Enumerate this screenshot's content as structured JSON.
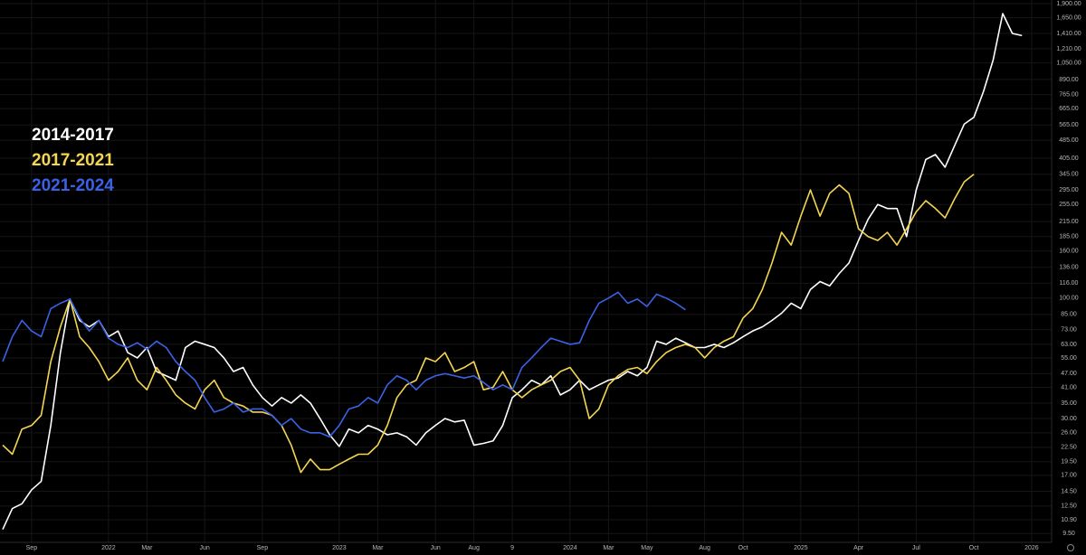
{
  "chart_data": {
    "type": "line",
    "log_scale": true,
    "grid": true,
    "legend": "upper-left",
    "categories": [
      null,
      null,
      null,
      "Sep",
      null,
      null,
      null,
      null,
      null,
      null,
      null,
      "2022",
      null,
      null,
      null,
      "Mar",
      null,
      null,
      null,
      null,
      null,
      "Jun",
      null,
      null,
      null,
      null,
      null,
      "Sep",
      null,
      null,
      null,
      null,
      null,
      null,
      null,
      "2023",
      null,
      null,
      null,
      "Mar",
      null,
      null,
      null,
      null,
      null,
      "Jun",
      null,
      null,
      null,
      "Aug",
      null,
      null,
      null,
      "9",
      null,
      null,
      null,
      null,
      null,
      "2024",
      null,
      null,
      null,
      "Mar",
      null,
      null,
      null,
      "May",
      null,
      null,
      null,
      null,
      null,
      "Aug",
      null,
      null,
      null,
      "Oct",
      null,
      null,
      null,
      null,
      null,
      "2025",
      null,
      null,
      null,
      null,
      null,
      "Apr",
      null,
      null,
      null,
      null,
      null,
      "Jul",
      null,
      null,
      null,
      null,
      null,
      "Oct",
      null,
      null,
      null,
      null,
      null,
      "2026"
    ],
    "series": [
      {
        "name": "2014-2017",
        "color": "#ffffff",
        "values": [
          9.9,
          12.2,
          12.8,
          14.7,
          16,
          28,
          58,
          99,
          80,
          75,
          80,
          68,
          72,
          58,
          55,
          61,
          48,
          46,
          44,
          61,
          65,
          63,
          61,
          55,
          48,
          50,
          42,
          37,
          34,
          37,
          35,
          38,
          35,
          30,
          25.5,
          22.7,
          27,
          26,
          28,
          27,
          25.5,
          26,
          25,
          23,
          26,
          28,
          30,
          29,
          29.5,
          23,
          23.4,
          24,
          28,
          37,
          40,
          44,
          42,
          46,
          38,
          40,
          44,
          40,
          42,
          44,
          45,
          48,
          46,
          50,
          65,
          63,
          67,
          64,
          61,
          61,
          63,
          61,
          64,
          68,
          72,
          75,
          80,
          86,
          95,
          90,
          109,
          118,
          113,
          128,
          142,
          178,
          220,
          255,
          245,
          245,
          185,
          295,
          400,
          420,
          370,
          460,
          570,
          610,
          790,
          1080,
          1720,
          1410,
          1380,
          null
        ]
      },
      {
        "name": "2017-2021",
        "color": "#f5d651",
        "values": [
          23,
          21,
          27,
          28,
          31,
          53,
          75,
          99,
          68,
          61,
          53,
          44,
          48,
          55,
          44,
          40,
          50,
          44,
          38,
          35,
          33,
          40,
          44,
          37,
          35,
          34,
          32,
          32,
          31,
          28,
          23,
          17.5,
          20,
          18,
          18,
          19,
          20,
          21,
          21,
          23,
          28,
          37,
          42,
          44,
          55,
          53,
          58,
          48,
          50,
          53,
          40,
          41,
          48,
          40,
          37,
          40,
          42,
          44,
          48,
          50,
          44,
          30,
          33,
          42,
          46,
          49,
          50,
          47,
          53,
          58,
          61,
          63,
          61,
          55,
          61,
          65,
          68,
          82,
          90,
          109,
          142,
          193,
          170,
          227,
          295,
          227,
          285,
          310,
          285,
          200,
          185,
          178,
          193,
          170,
          200,
          237,
          265,
          245,
          223,
          270,
          320,
          345,
          null,
          null,
          null,
          null,
          null,
          null
        ]
      },
      {
        "name": "2021-2024",
        "color": "#3b62e6",
        "values": [
          53,
          68,
          80,
          72,
          68,
          90,
          95,
          99,
          82,
          72,
          80,
          67,
          63,
          61,
          64,
          60,
          65,
          61,
          53,
          48,
          44,
          37,
          32,
          33,
          35,
          32,
          33,
          33,
          31,
          28,
          30,
          27,
          26,
          26,
          25,
          28,
          33,
          34,
          37,
          35,
          42,
          46,
          44,
          40,
          44,
          46,
          47,
          46,
          45,
          46,
          43,
          40,
          42,
          40,
          50,
          55,
          61,
          67,
          65,
          63,
          64,
          80,
          95,
          100,
          106,
          95,
          99,
          92,
          104,
          100,
          95,
          89,
          null,
          null,
          null,
          null,
          null,
          null,
          null,
          null,
          null,
          null,
          null,
          null,
          null,
          null,
          null,
          null,
          null,
          null,
          null,
          null,
          null,
          null,
          null,
          null,
          null,
          null,
          null,
          null,
          null,
          null,
          null,
          null,
          null,
          null,
          null,
          null
        ]
      }
    ],
    "ylim": [
      8.7,
      1970
    ],
    "yticks": [
      {
        "value": 1900,
        "label": "1,900.00"
      },
      {
        "value": 1650,
        "label": "1,650.00"
      },
      {
        "value": 1410,
        "label": "1,410.00"
      },
      {
        "value": 1210,
        "label": "1,210.00"
      },
      {
        "value": 1050,
        "label": "1,050.00"
      },
      {
        "value": 890,
        "label": "890.00"
      },
      {
        "value": 765,
        "label": "765.00"
      },
      {
        "value": 665,
        "label": "665.00"
      },
      {
        "value": 565,
        "label": "565.00"
      },
      {
        "value": 485,
        "label": "485.00"
      },
      {
        "value": 405,
        "label": "405.00"
      },
      {
        "value": 345,
        "label": "345.00"
      },
      {
        "value": 295,
        "label": "295.00"
      },
      {
        "value": 255,
        "label": "255.00"
      },
      {
        "value": 215,
        "label": "215.00"
      },
      {
        "value": 185,
        "label": "185.00"
      },
      {
        "value": 160,
        "label": "160.00"
      },
      {
        "value": 136,
        "label": "136.00"
      },
      {
        "value": 116,
        "label": "116.00"
      },
      {
        "value": 100,
        "label": "100.00"
      },
      {
        "value": 85,
        "label": "85.00"
      },
      {
        "value": 73,
        "label": "73.00"
      },
      {
        "value": 63,
        "label": "63.00"
      },
      {
        "value": 55,
        "label": "55.00"
      },
      {
        "value": 47,
        "label": "47.00"
      },
      {
        "value": 41,
        "label": "41.00"
      },
      {
        "value": 35,
        "label": "35.00"
      },
      {
        "value": 30,
        "label": "30.00"
      },
      {
        "value": 26,
        "label": "26.00"
      },
      {
        "value": 22.5,
        "label": "22.50"
      },
      {
        "value": 19.5,
        "label": "19.50"
      },
      {
        "value": 17,
        "label": "17.00"
      },
      {
        "value": 14.5,
        "label": "14.50"
      },
      {
        "value": 12.5,
        "label": "12.50"
      },
      {
        "value": 10.9,
        "label": "10.90"
      },
      {
        "value": 9.5,
        "label": "9.50"
      }
    ]
  }
}
